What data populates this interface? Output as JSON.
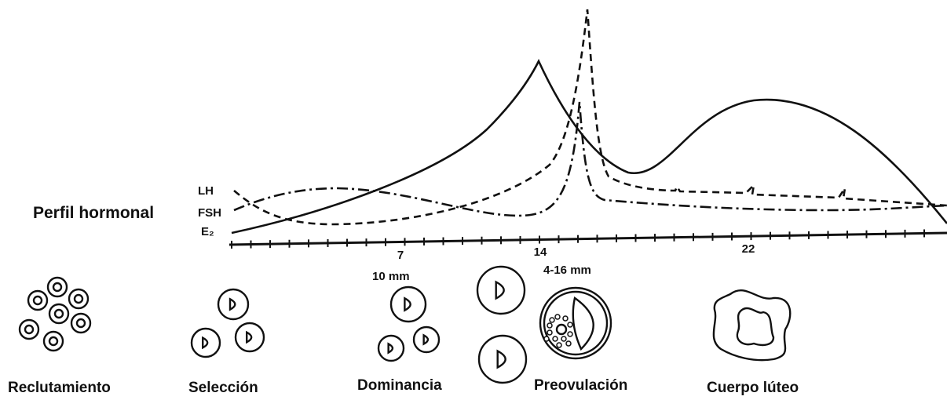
{
  "labels": {
    "profile": "Perfil hormonal",
    "lh": "LH",
    "fsh": "FSH",
    "e2": "E₂"
  },
  "axis_days": [
    "7",
    "14",
    "22"
  ],
  "sizes": [
    "10 mm",
    "4-16 mm"
  ],
  "stages": [
    "Reclutamiento",
    "Selección",
    "Dominancia",
    "Preovulación",
    "Cuerpo lúteo"
  ]
}
